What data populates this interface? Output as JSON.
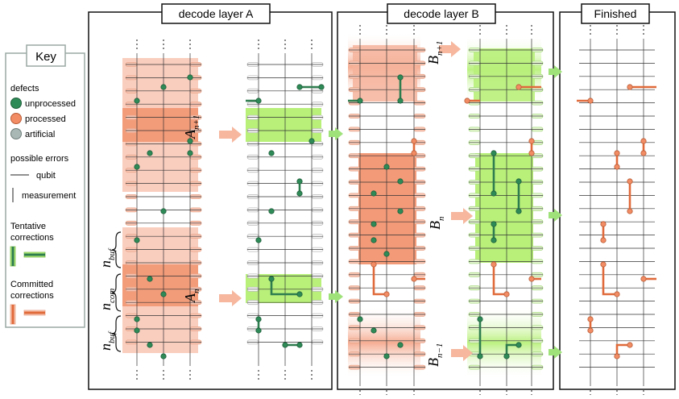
{
  "panels": {
    "layer_a": "decode layer A",
    "layer_b": "decode layer B",
    "finished": "Finished"
  },
  "key": {
    "title": "Key",
    "defects_heading": "defects",
    "unprocessed": "unprocessed",
    "processed": "processed",
    "artificial": "artificial",
    "errors_heading": "possible errors",
    "qubit": "qubit",
    "measurement": "measurement",
    "tentative_1": "Tentative",
    "tentative_2": "corrections",
    "committed_1": "Committed",
    "committed_2": "corrections"
  },
  "labels": {
    "a_next": "A",
    "a_next_sub": "n+1",
    "a_cur": "A",
    "a_cur_sub": "n",
    "b_next": "B",
    "b_next_sub": "n+1",
    "b_cur": "B",
    "b_cur_sub": "n",
    "b_prev": "B",
    "b_prev_sub": "n−1",
    "nbuf_top": "n",
    "nbuf_top_sub": "buf",
    "ncom": "n",
    "ncom_sub": "com",
    "nbuf_bot": "n",
    "nbuf_bot_sub": "buf"
  },
  "colors": {
    "unprocessed": "#2e8b57",
    "processed": "#f28c64",
    "artificial": "#a9b8b4",
    "tentative": "#2e7d4f",
    "committed": "#e06a3a",
    "buffer_fill": "#f9c6b4",
    "commit_fill": "#f2916c",
    "green_fill": "#b8f07a",
    "arrow": "#f6b79e",
    "arrow_green": "#9fe27a"
  }
}
